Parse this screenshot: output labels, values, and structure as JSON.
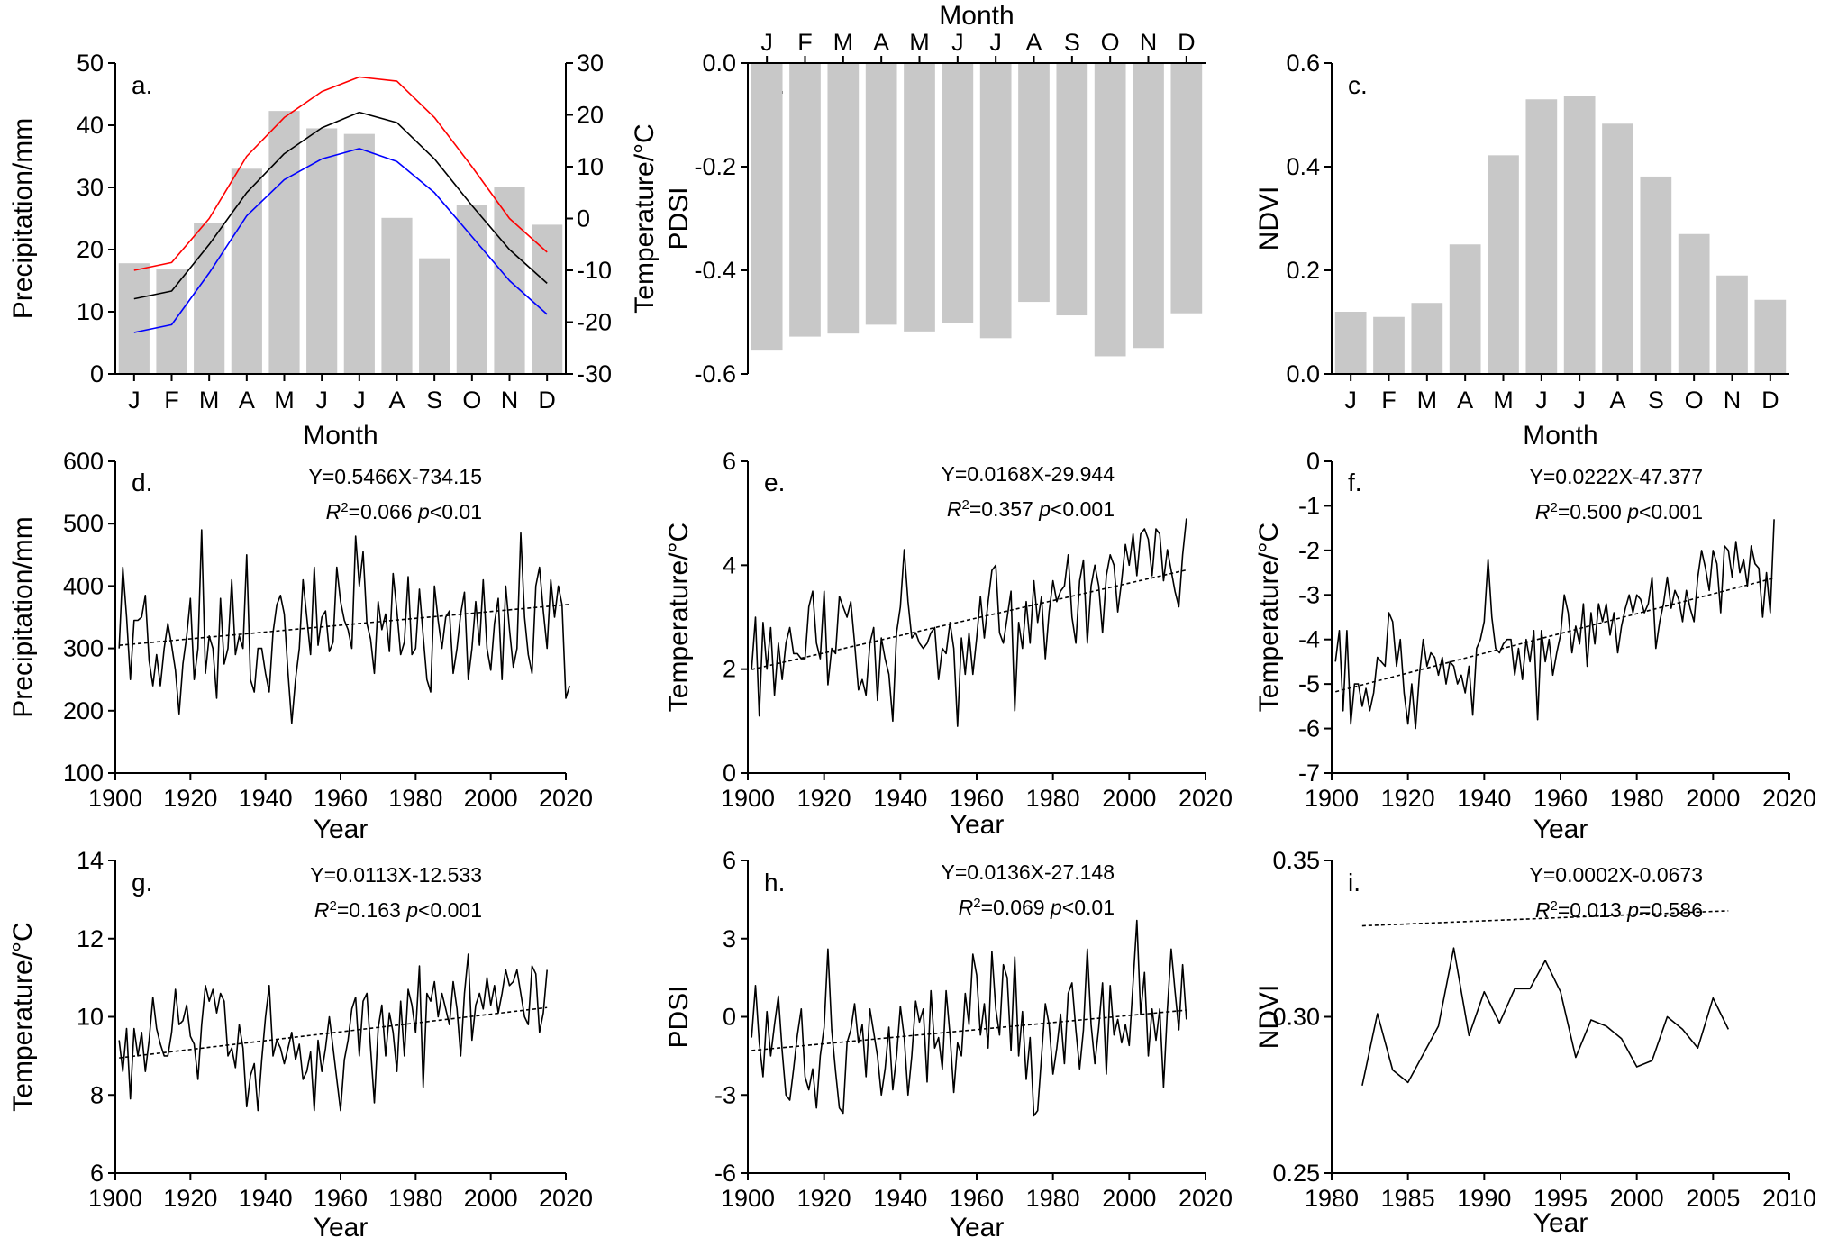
{
  "chart_data": [
    {
      "panel": "a.",
      "type": "bar",
      "categories": [
        "J",
        "F",
        "M",
        "A",
        "M",
        "J",
        "J",
        "A",
        "S",
        "O",
        "N",
        "D"
      ],
      "xlabel": "Month",
      "ylabel": "Precipitation/mm",
      "ylim": [
        0,
        50
      ],
      "yticks": [
        0,
        10,
        20,
        30,
        40,
        50
      ],
      "values": [
        17.8,
        16.8,
        24.2,
        33.0,
        42.3,
        39.5,
        38.6,
        25.1,
        18.6,
        27.1,
        30.0,
        24.0
      ],
      "y2label": "Temperature/°C",
      "y2lim": [
        -30,
        30
      ],
      "y2ticks": [
        -30,
        -20,
        -10,
        0,
        10,
        20,
        30
      ],
      "lines": [
        {
          "color": "#ff0000",
          "values": [
            -10.0,
            -8.5,
            0.0,
            12.0,
            19.5,
            24.5,
            27.3,
            26.5,
            19.5,
            10.0,
            0.0,
            -6.5
          ]
        },
        {
          "color": "#000000",
          "values": [
            -15.5,
            -14.0,
            -5.0,
            5.0,
            12.5,
            17.5,
            20.5,
            18.5,
            11.5,
            2.5,
            -6.0,
            -12.5
          ]
        },
        {
          "color": "#0000ff",
          "values": [
            -22.0,
            -20.5,
            -10.5,
            0.5,
            7.5,
            11.5,
            13.5,
            11.0,
            5.0,
            -3.5,
            -12.0,
            -18.5
          ]
        }
      ]
    },
    {
      "panel": "b.",
      "type": "bar",
      "categories": [
        "J",
        "F",
        "M",
        "A",
        "M",
        "J",
        "J",
        "A",
        "S",
        "O",
        "N",
        "D"
      ],
      "xlabel": "Month",
      "xaxis_position": "top",
      "ylabel": "PDSI",
      "ylim": [
        -0.6,
        0.0
      ],
      "yticks": [
        -0.6,
        -0.4,
        -0.2,
        0.0
      ],
      "yticklabels": [
        "-0.6",
        "-0.4",
        "-0.2",
        "0.0"
      ],
      "values": [
        -0.555,
        -0.528,
        -0.522,
        -0.505,
        -0.518,
        -0.502,
        -0.531,
        -0.461,
        -0.487,
        -0.566,
        -0.55,
        -0.483
      ]
    },
    {
      "panel": "c.",
      "type": "bar",
      "categories": [
        "J",
        "F",
        "M",
        "A",
        "M",
        "J",
        "J",
        "A",
        "S",
        "O",
        "N",
        "D"
      ],
      "xlabel": "Month",
      "ylabel": "NDVI",
      "ylim": [
        0.0,
        0.6
      ],
      "yticks": [
        0.0,
        0.2,
        0.4,
        0.6
      ],
      "yticklabels": [
        "0.0",
        "0.2",
        "0.4",
        "0.6"
      ],
      "values": [
        0.12,
        0.11,
        0.137,
        0.25,
        0.422,
        0.53,
        0.537,
        0.483,
        0.381,
        0.27,
        0.19,
        0.143
      ]
    },
    {
      "panel": "d.",
      "type": "line",
      "xlabel": "Year",
      "ylabel": "Precipitation/mm",
      "xlim": [
        1900,
        2020
      ],
      "xticks": [
        1900,
        1920,
        1940,
        1960,
        1980,
        2000,
        2020
      ],
      "ylim": [
        100,
        600
      ],
      "yticks": [
        100,
        200,
        300,
        400,
        500,
        600
      ],
      "x_start": 1901,
      "x_step": 1,
      "values": [
        300,
        430,
        350,
        250,
        345,
        345,
        350,
        385,
        280,
        240,
        290,
        240,
        300,
        340,
        305,
        265,
        195,
        275,
        320,
        380,
        250,
        300,
        490,
        260,
        320,
        300,
        220,
        380,
        275,
        300,
        410,
        290,
        320,
        300,
        450,
        250,
        230,
        300,
        300,
        260,
        230,
        325,
        370,
        385,
        355,
        260,
        180,
        250,
        300,
        410,
        350,
        290,
        430,
        305,
        350,
        360,
        295,
        310,
        430,
        375,
        345,
        330,
        300,
        480,
        400,
        455,
        340,
        315,
        260,
        375,
        330,
        355,
        295,
        420,
        360,
        290,
        310,
        415,
        290,
        300,
        395,
        320,
        250,
        230,
        400,
        345,
        300,
        350,
        360,
        260,
        300,
        355,
        390,
        250,
        300,
        375,
        305,
        410,
        300,
        265,
        340,
        380,
        250,
        400,
        330,
        270,
        300,
        485,
        350,
        290,
        260,
        400,
        430,
        360,
        300,
        410,
        350,
        400,
        370,
        220,
        240
      ],
      "trend": {
        "slope": 0.5466,
        "intercept": -734.15
      },
      "equation": "Y=0.5466X-734.15",
      "r2_prefix": "R",
      "r2_exp": "2",
      "r2_value": "=0.066",
      "p_prefix": "p",
      "p_value": "<0.01"
    },
    {
      "panel": "e.",
      "type": "line",
      "xlabel": "Year",
      "ylabel": "Temperature/°C",
      "xlim": [
        1900,
        2020
      ],
      "xticks": [
        1900,
        1920,
        1940,
        1960,
        1980,
        2000,
        2020
      ],
      "ylim": [
        0,
        6
      ],
      "yticks": [
        0,
        2,
        4,
        6
      ],
      "x_start": 1901,
      "x_step": 1,
      "values": [
        2.0,
        3.0,
        1.1,
        2.9,
        2.0,
        2.8,
        1.5,
        2.5,
        1.8,
        2.5,
        2.8,
        2.3,
        2.3,
        2.2,
        2.2,
        3.2,
        3.5,
        2.5,
        2.2,
        3.5,
        1.7,
        2.4,
        2.3,
        3.4,
        3.2,
        3.0,
        3.3,
        2.5,
        1.6,
        1.8,
        1.5,
        2.5,
        2.8,
        1.4,
        2.6,
        2.2,
        1.9,
        1.0,
        2.7,
        3.2,
        4.3,
        3.3,
        2.6,
        2.7,
        2.5,
        2.4,
        2.5,
        2.7,
        2.8,
        1.8,
        2.4,
        2.3,
        2.9,
        2.4,
        0.9,
        2.6,
        1.9,
        2.7,
        1.9,
        2.6,
        3.4,
        2.6,
        3.3,
        3.9,
        4.0,
        2.7,
        2.5,
        3.0,
        3.5,
        1.2,
        2.9,
        2.4,
        3.3,
        2.5,
        3.7,
        2.9,
        3.4,
        2.2,
        3.1,
        3.7,
        3.3,
        3.5,
        3.6,
        4.2,
        3.0,
        2.5,
        3.7,
        4.1,
        2.5,
        3.6,
        4.0,
        3.6,
        2.7,
        3.8,
        4.2,
        4.0,
        3.1,
        3.7,
        4.4,
        4.0,
        4.6,
        3.8,
        4.6,
        4.7,
        4.5,
        3.8,
        4.7,
        4.6,
        3.7,
        4.3,
        3.9,
        3.5,
        3.2,
        4.2,
        4.9
      ],
      "trend": {
        "slope": 0.0168,
        "intercept": -29.944
      },
      "equation": "Y=0.0168X-29.944",
      "r2_prefix": "R",
      "r2_exp": "2",
      "r2_value": "=0.357",
      "p_prefix": "p",
      "p_value": "<0.001"
    },
    {
      "panel": "f.",
      "type": "line",
      "xlabel": "Year",
      "ylabel": "Temperature/°C",
      "xlim": [
        1900,
        2020
      ],
      "xticks": [
        1900,
        1920,
        1940,
        1960,
        1980,
        2000,
        2020
      ],
      "ylim": [
        -7,
        0
      ],
      "yticks": [
        -7,
        -6,
        -5,
        -4,
        -3,
        -2,
        -1,
        0
      ],
      "x_start": 1901,
      "x_step": 1,
      "values": [
        -4.5,
        -3.8,
        -5.6,
        -3.8,
        -5.9,
        -5.0,
        -5.0,
        -5.5,
        -5.1,
        -5.6,
        -5.2,
        -4.4,
        -4.5,
        -4.6,
        -3.4,
        -3.6,
        -4.6,
        -4.0,
        -5.2,
        -5.9,
        -5.0,
        -6.0,
        -4.8,
        -4.0,
        -4.6,
        -4.3,
        -4.4,
        -4.8,
        -4.4,
        -5.0,
        -4.5,
        -4.6,
        -5.0,
        -4.8,
        -5.2,
        -4.6,
        -5.7,
        -4.2,
        -4.0,
        -3.6,
        -2.2,
        -3.5,
        -4.2,
        -4.3,
        -4.1,
        -4.0,
        -4.0,
        -4.8,
        -4.2,
        -4.9,
        -4.0,
        -4.5,
        -3.8,
        -5.8,
        -3.8,
        -4.5,
        -4.0,
        -4.8,
        -4.3,
        -3.9,
        -3.0,
        -3.4,
        -4.3,
        -3.7,
        -4.1,
        -3.2,
        -4.6,
        -3.4,
        -4.1,
        -3.2,
        -3.6,
        -3.2,
        -3.9,
        -3.4,
        -4.3,
        -3.7,
        -3.3,
        -3.0,
        -3.4,
        -3.0,
        -3.1,
        -3.4,
        -3.2,
        -2.6,
        -4.2,
        -3.6,
        -3.2,
        -2.6,
        -3.3,
        -2.9,
        -3.1,
        -3.6,
        -2.9,
        -3.3,
        -3.6,
        -2.6,
        -2.0,
        -2.4,
        -2.9,
        -2.0,
        -2.3,
        -3.4,
        -1.9,
        -2.0,
        -2.6,
        -1.8,
        -2.5,
        -2.2,
        -2.8,
        -1.9,
        -2.3,
        -2.4,
        -3.5,
        -2.5,
        -3.4,
        -1.3
      ],
      "trend": {
        "slope": 0.0222,
        "intercept": -47.377
      },
      "equation": "Y=0.0222X-47.377",
      "r2_prefix": "R",
      "r2_exp": "2",
      "r2_value": "=0.500",
      "p_prefix": "p",
      "p_value": "<0.001"
    },
    {
      "panel": "g.",
      "type": "line",
      "xlabel": "Year",
      "ylabel": "Temperature/°C",
      "xlim": [
        1900,
        2020
      ],
      "xticks": [
        1900,
        1920,
        1940,
        1960,
        1980,
        2000,
        2020
      ],
      "ylim": [
        6,
        14
      ],
      "yticks": [
        6,
        8,
        10,
        12,
        14
      ],
      "x_start": 1901,
      "x_step": 1,
      "values": [
        9.4,
        8.6,
        9.7,
        7.9,
        9.7,
        9.0,
        9.6,
        8.6,
        9.4,
        10.5,
        9.7,
        9.3,
        9.0,
        9.0,
        9.6,
        10.7,
        9.8,
        9.9,
        10.3,
        9.5,
        9.3,
        8.4,
        9.8,
        10.8,
        10.4,
        10.7,
        10.1,
        10.6,
        10.4,
        9.0,
        9.2,
        8.7,
        9.8,
        9.2,
        7.7,
        8.5,
        8.8,
        7.6,
        8.9,
        10.0,
        10.8,
        9.0,
        9.4,
        9.2,
        8.8,
        9.2,
        9.6,
        8.9,
        9.3,
        8.4,
        8.6,
        9.1,
        7.6,
        9.4,
        8.6,
        9.2,
        10.0,
        9.2,
        8.4,
        7.6,
        8.9,
        9.4,
        10.2,
        10.5,
        9.0,
        10.4,
        10.6,
        9.2,
        7.8,
        9.7,
        10.3,
        9.0,
        10.1,
        9.6,
        8.6,
        10.4,
        9.0,
        10.7,
        10.3,
        9.6,
        11.3,
        8.2,
        10.6,
        10.4,
        10.9,
        10.0,
        10.6,
        10.2,
        9.8,
        10.9,
        10.2,
        9.0,
        10.6,
        11.6,
        9.4,
        10.3,
        10.6,
        10.2,
        11.0,
        10.3,
        10.8,
        10.1,
        10.6,
        11.2,
        10.8,
        10.9,
        11.2,
        10.6,
        10.0,
        9.8,
        11.3,
        11.1,
        9.6,
        10.1,
        11.2
      ],
      "trend": {
        "slope": 0.0113,
        "intercept": -12.533
      },
      "equation": "Y=0.0113X-12.533",
      "r2_prefix": "R",
      "r2_exp": "2",
      "r2_value": "=0.163",
      "p_prefix": "p",
      "p_value": "<0.001"
    },
    {
      "panel": "h.",
      "type": "line",
      "xlabel": "Year",
      "ylabel": "PDSI",
      "xlim": [
        1900,
        2020
      ],
      "xticks": [
        1900,
        1920,
        1940,
        1960,
        1980,
        2000,
        2020
      ],
      "ylim": [
        -6,
        6
      ],
      "yticks": [
        -6,
        -3,
        0,
        3,
        6
      ],
      "x_start": 1901,
      "x_step": 1,
      "values": [
        -0.8,
        1.2,
        -1.0,
        -2.3,
        0.2,
        -1.5,
        -0.3,
        0.8,
        -1.3,
        -3.0,
        -3.2,
        -2.0,
        -0.7,
        0.3,
        -2.3,
        -2.8,
        -2.0,
        -3.5,
        -1.5,
        -0.4,
        2.6,
        -0.5,
        -2.1,
        -3.5,
        -3.7,
        -1.0,
        -0.5,
        0.5,
        -1.0,
        -0.3,
        -2.3,
        0.3,
        -0.6,
        -1.5,
        -3.0,
        -2.0,
        -0.4,
        -2.8,
        -1.5,
        0.4,
        -0.8,
        -3.0,
        -1.5,
        0.6,
        -0.2,
        0.3,
        -2.5,
        1.0,
        -1.2,
        -0.8,
        -2.0,
        1.0,
        -0.7,
        -2.9,
        -1.0,
        -1.5,
        0.9,
        -0.3,
        2.4,
        1.6,
        -0.7,
        0.5,
        -1.2,
        2.5,
        0.3,
        -0.7,
        2.0,
        1.5,
        -1.3,
        2.3,
        -1.5,
        0.2,
        -2.4,
        -0.8,
        -3.8,
        -3.6,
        -1.5,
        0.5,
        -0.3,
        -2.2,
        -1.2,
        0.1,
        -1.8,
        0.9,
        1.3,
        -0.5,
        -2.0,
        -0.5,
        2.6,
        -0.3,
        -1.8,
        -0.4,
        1.3,
        -2.2,
        1.2,
        -0.7,
        -0.1,
        -1.0,
        -0.3,
        -1.1,
        1.3,
        3.7,
        0.1,
        1.7,
        -1.5,
        0.3,
        -0.9,
        0.3,
        -2.7,
        0.3,
        2.6,
        1.0,
        -0.5,
        2.0,
        -0.1
      ],
      "trend": {
        "slope": 0.0136,
        "intercept": -27.148
      },
      "equation": "Y=0.0136X-27.148",
      "r2_prefix": "R",
      "r2_exp": "2",
      "r2_value": "=0.069",
      "p_prefix": "p",
      "p_value": "<0.01"
    },
    {
      "panel": "i.",
      "type": "line",
      "xlabel": "Year",
      "ylabel": "NDVI",
      "xlim": [
        1980,
        2010
      ],
      "xticks": [
        1980,
        1985,
        1990,
        1995,
        2000,
        2005,
        2010
      ],
      "ylim": [
        0.25,
        0.35
      ],
      "yticks": [
        0.25,
        0.3,
        0.35
      ],
      "yticklabels": [
        "0.25",
        "0.30",
        "0.35"
      ],
      "x_start": 1982,
      "x_step": 1,
      "values": [
        0.278,
        0.301,
        0.283,
        0.279,
        0.288,
        0.297,
        0.322,
        0.294,
        0.308,
        0.298,
        0.309,
        0.309,
        0.318,
        0.308,
        0.287,
        0.299,
        0.297,
        0.293,
        0.284,
        0.286,
        0.3,
        0.296,
        0.29,
        0.306,
        0.296
      ],
      "trend": {
        "slope": 0.0002,
        "intercept": -0.0673
      },
      "equation": "Y=0.0002X-0.0673",
      "r2_prefix": "R",
      "r2_exp": "2",
      "r2_value": "=0.013",
      "p_prefix": "p",
      "p_value": "=0.586"
    }
  ]
}
